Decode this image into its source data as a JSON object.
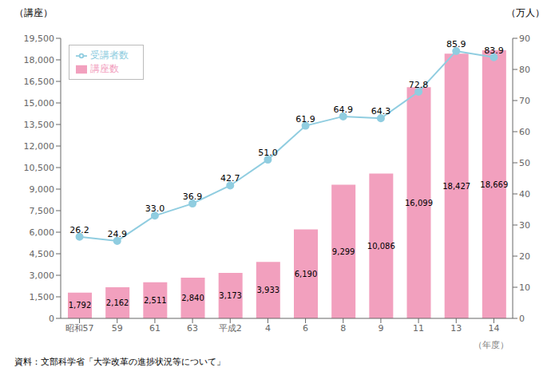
{
  "chart_data": {
    "type": "bar",
    "categories": [
      "昭和57",
      "59",
      "61",
      "63",
      "平成2",
      "4",
      "6",
      "8",
      "9",
      "11",
      "13",
      "14"
    ],
    "series": [
      {
        "name": "講座数",
        "type": "bar",
        "color": "#F2A0BE",
        "values": [
          1792,
          2162,
          2511,
          2840,
          3173,
          3933,
          6190,
          9299,
          10086,
          16099,
          18427,
          18669
        ],
        "value_labels": [
          "1,792",
          "2,162",
          "2,511",
          "2,840",
          "3,173",
          "3,933",
          "6,190",
          "9,299",
          "10,086",
          "16,099",
          "18,427",
          "18,669"
        ]
      },
      {
        "name": "受講者数",
        "type": "line",
        "axis": "y2",
        "color": "#90CDE0",
        "marker": "circle",
        "values": [
          26.2,
          24.9,
          33.0,
          36.9,
          42.7,
          51.0,
          61.9,
          64.9,
          64.3,
          72.8,
          85.9,
          83.9
        ],
        "value_labels": [
          "26.2",
          "24.9",
          "33.0",
          "36.9",
          "42.7",
          "51.0",
          "61.9",
          "64.9",
          "64.3",
          "72.8",
          "85.9",
          "83.9"
        ]
      }
    ],
    "ylabel": "（講座）",
    "y2label": "（万人）",
    "xlabel": "（年度）",
    "source": "資料：文部科学省「大学改革の進捗状況等について」",
    "ylim": [
      0,
      19500
    ],
    "yticks": [
      0,
      {
        "value": 1500,
        "label": "1,500"
      },
      {
        "value": 3000,
        "label": "3,000"
      },
      {
        "value": 4500,
        "label": "4,500"
      },
      {
        "value": 6000,
        "label": "6,000"
      },
      {
        "value": 7500,
        "label": "7,500"
      },
      {
        "value": 9000,
        "label": "9,000"
      },
      {
        "value": 10500,
        "label": "10,500"
      },
      {
        "value": 12000,
        "label": "12,000"
      },
      {
        "value": 13500,
        "label": "13,500"
      },
      {
        "value": 15000,
        "label": "15,000"
      },
      {
        "value": 16500,
        "label": "16,500"
      },
      {
        "value": 18000,
        "label": "18,000"
      },
      {
        "value": 19500,
        "label": "19,500"
      }
    ],
    "y2lim": [
      0,
      90
    ],
    "y2ticks": [
      0,
      10,
      20,
      30,
      40,
      50,
      60,
      70,
      80,
      90
    ],
    "grid": false,
    "legend": "upper left",
    "data_labels": true
  }
}
